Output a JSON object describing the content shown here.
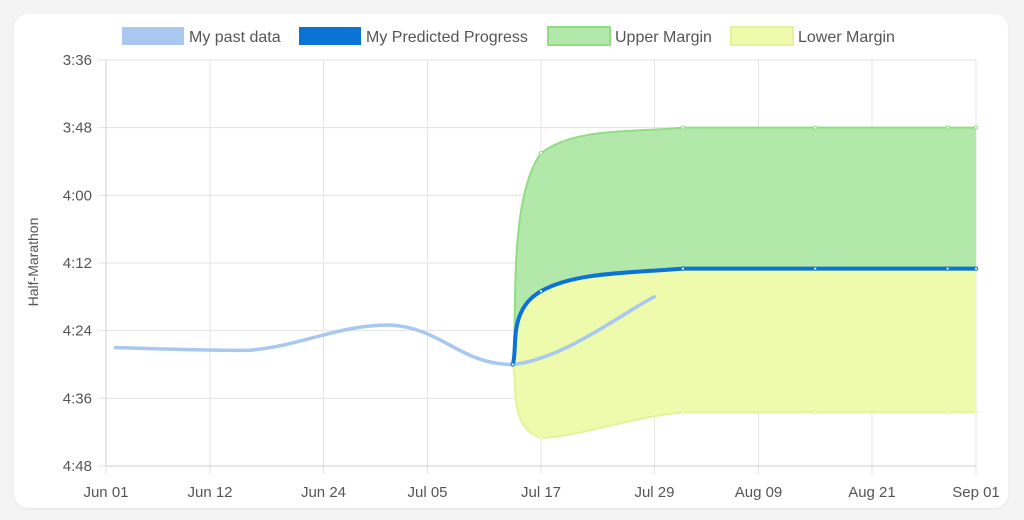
{
  "chart_data": {
    "type": "line",
    "ylabel": "Half-Marathon",
    "x_tick_labels": [
      "Jun 01",
      "Jun 12",
      "Jun 24",
      "Jul 05",
      "Jul 17",
      "Jul 29",
      "Aug 09",
      "Aug 21",
      "Sep 01"
    ],
    "y_tick_labels": [
      "3:36",
      "3:48",
      "4:00",
      "4:12",
      "4:24",
      "4:36",
      "4:48"
    ],
    "y_axis_reversed": true,
    "ylim": [
      "3:36",
      "4:48"
    ],
    "xlim": [
      "Jun 01",
      "Sep 01"
    ],
    "grid": true,
    "legend_position": "top",
    "series": [
      {
        "name": "My past data",
        "color": "#a8c8ef",
        "points": [
          {
            "x": "Jun 02",
            "y": "4:27"
          },
          {
            "x": "Jun 16",
            "y": "4:27.5"
          },
          {
            "x": "Jul 01",
            "y": "4:23"
          },
          {
            "x": "Jul 14",
            "y": "4:30"
          },
          {
            "x": "Jul 29",
            "y": "4:18"
          }
        ]
      },
      {
        "name": "My Predicted Progress",
        "color": "#0b73d6",
        "points": [
          {
            "x": "Jul 14",
            "y": "4:30"
          },
          {
            "x": "Jul 17",
            "y": "4:17"
          },
          {
            "x": "Aug 01",
            "y": "4:13"
          },
          {
            "x": "Aug 15",
            "y": "4:13"
          },
          {
            "x": "Aug 29",
            "y": "4:13"
          },
          {
            "x": "Sep 01",
            "y": "4:13"
          }
        ]
      },
      {
        "name": "Upper Margin",
        "color": "#92dc83",
        "fill": "#b2e8aa",
        "points": [
          {
            "x": "Jul 14",
            "y": "4:30"
          },
          {
            "x": "Jul 17",
            "y": "3:52.5"
          },
          {
            "x": "Aug 01",
            "y": "3:48"
          },
          {
            "x": "Aug 15",
            "y": "3:48"
          },
          {
            "x": "Aug 29",
            "y": "3:48"
          },
          {
            "x": "Sep 01",
            "y": "3:48"
          }
        ]
      },
      {
        "name": "Lower Margin",
        "color": "#e2f39c",
        "fill": "#eefaac",
        "points": [
          {
            "x": "Jul 14",
            "y": "4:30"
          },
          {
            "x": "Jul 17",
            "y": "4:43"
          },
          {
            "x": "Aug 01",
            "y": "4:38.5"
          },
          {
            "x": "Aug 15",
            "y": "4:38.5"
          },
          {
            "x": "Aug 29",
            "y": "4:38.5"
          },
          {
            "x": "Sep 01",
            "y": "4:38.5"
          }
        ]
      }
    ]
  }
}
